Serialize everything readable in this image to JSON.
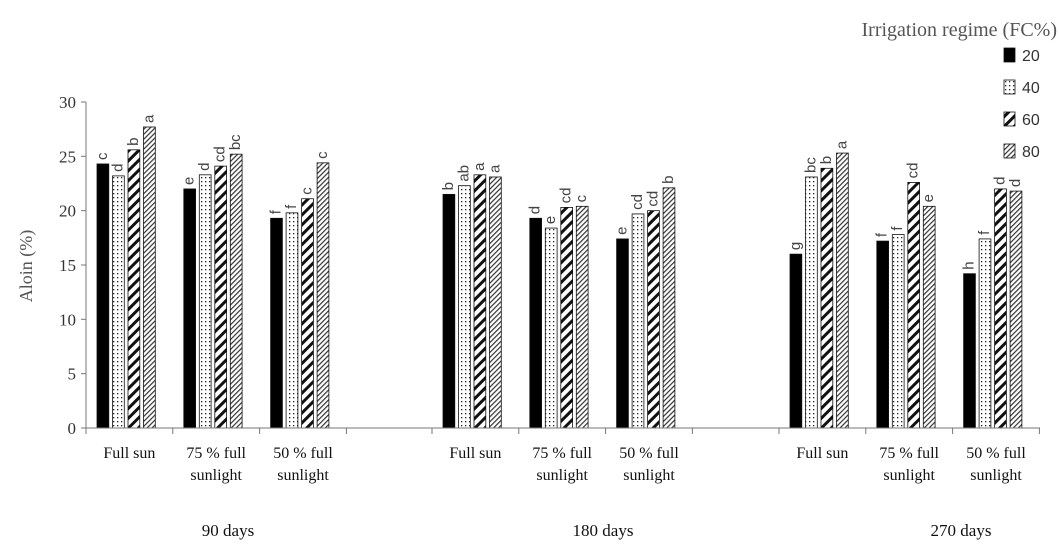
{
  "chart_data": {
    "type": "bar",
    "ylabel": "Aloin (%)",
    "ylim": [
      0,
      30
    ],
    "yticks": [
      0,
      5,
      10,
      15,
      20,
      25,
      30
    ],
    "grid": false,
    "legend": {
      "title": "Irrigation regime (FC%)",
      "placement": "top-right",
      "entries": [
        {
          "label": "20",
          "pattern": "solid-black"
        },
        {
          "label": "40",
          "pattern": "dots"
        },
        {
          "label": "60",
          "pattern": "wide-diagonal"
        },
        {
          "label": "80",
          "pattern": "fine-diagonal"
        }
      ]
    },
    "periods": [
      {
        "label": "90 days",
        "groups": [
          {
            "label_lines": [
              "Full sun"
            ],
            "values": [
              24.3,
              23.2,
              25.6,
              27.7
            ],
            "letters": [
              "c",
              "d",
              "b",
              "a"
            ]
          },
          {
            "label_lines": [
              "75 % full",
              "sunlight"
            ],
            "values": [
              22.0,
              23.3,
              24.1,
              25.2
            ],
            "letters": [
              "e",
              "d",
              "cd",
              "bc"
            ]
          },
          {
            "label_lines": [
              "50 % full",
              "sunlight"
            ],
            "values": [
              19.3,
              19.8,
              21.1,
              24.4
            ],
            "letters": [
              "f",
              "f",
              "c",
              "c"
            ]
          }
        ]
      },
      {
        "label": "180 days",
        "groups": [
          {
            "label_lines": [
              "Full sun"
            ],
            "values": [
              21.5,
              22.3,
              23.3,
              23.1
            ],
            "letters": [
              "b",
              "ab",
              "a",
              "a"
            ]
          },
          {
            "label_lines": [
              "75 % full",
              "sunlight"
            ],
            "values": [
              19.3,
              18.4,
              20.3,
              20.4
            ],
            "letters": [
              "d",
              "e",
              "cd",
              "c"
            ]
          },
          {
            "label_lines": [
              "50 % full",
              "sunlight"
            ],
            "values": [
              17.4,
              19.7,
              20.0,
              22.1
            ],
            "letters": [
              "e",
              "cd",
              "cd",
              "b"
            ]
          }
        ]
      },
      {
        "label": "270 days",
        "groups": [
          {
            "label_lines": [
              "Full sun"
            ],
            "values": [
              16.0,
              23.1,
              23.9,
              25.3
            ],
            "letters": [
              "g",
              "bc",
              "b",
              "a"
            ]
          },
          {
            "label_lines": [
              "75 % full",
              "sunlight"
            ],
            "values": [
              17.2,
              17.8,
              22.6,
              20.4
            ],
            "letters": [
              "f",
              "f",
              "cd",
              "e"
            ]
          },
          {
            "label_lines": [
              "50 % full",
              "sunlight"
            ],
            "values": [
              14.2,
              17.4,
              22.0,
              21.8
            ],
            "letters": [
              "h",
              "f",
              "d",
              "d"
            ]
          }
        ]
      }
    ]
  }
}
